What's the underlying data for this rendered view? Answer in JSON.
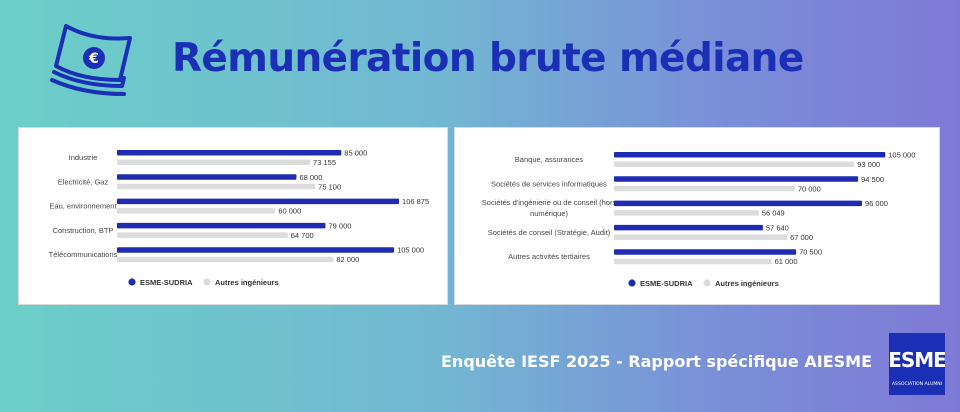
{
  "title": "Rémunération brute médiane",
  "footer": "Enquête IESF 2025 - Rapport spécifique AIESME",
  "logo": {
    "text": "ESME",
    "subtext": "ASSOCIATION ALUMNI"
  },
  "colors": {
    "esme": "#1f2bb0",
    "autres": "#dcdcdc",
    "title": "#1a2fb5"
  },
  "chart_data": [
    {
      "type": "bar",
      "orientation": "horizontal",
      "categories": [
        "Industrie",
        "Electricité, Gaz",
        "Eau, environnement",
        "Construction, BTP",
        "Télécommunications"
      ],
      "series": [
        {
          "name": "ESME-SUDRIA",
          "values": [
            85000,
            68000,
            106875,
            79000,
            105000
          ],
          "labels": [
            "85 000",
            "68 000",
            "106 875",
            "79 000",
            "105 000"
          ]
        },
        {
          "name": "Autres ingénieurs",
          "values": [
            73155,
            75100,
            60000,
            64700,
            82000
          ],
          "labels": [
            "73 155",
            "75 100",
            "60 000",
            "64 700",
            "82 000"
          ]
        }
      ],
      "xlim": [
        0,
        108000
      ],
      "legend": "bottom-left"
    },
    {
      "type": "bar",
      "orientation": "horizontal",
      "categories": [
        "Banque, assurances",
        "Sociétés de services informatiques",
        "Sociétés d'ingénierie ou de conseil (hors numérique)",
        "Sociétés de conseil (Stratégie, Audit)",
        "Autres activités tertiaires"
      ],
      "category_lines": [
        [
          "Banque, assurances"
        ],
        [
          "Sociétés de services informatiques"
        ],
        [
          "Sociétés d'ingénierie ou de conseil (hors",
          "numérique)"
        ],
        [
          "Sociétés de conseil (Stratégie, Audit)"
        ],
        [
          "Autres activités tertiaires"
        ]
      ],
      "series": [
        {
          "name": "ESME-SUDRIA",
          "values": [
            105000,
            94500,
            96000,
            57640,
            70500
          ],
          "labels": [
            "105 000",
            "94 500",
            "96 000",
            "57 640",
            "70 500"
          ]
        },
        {
          "name": "Autres ingénieurs",
          "values": [
            93000,
            70000,
            56049,
            67000,
            61000
          ],
          "labels": [
            "93 000",
            "70 000",
            "56 049",
            "67 000",
            "61 000"
          ]
        }
      ],
      "xlim": [
        0,
        108000
      ],
      "legend": "bottom-left"
    }
  ]
}
